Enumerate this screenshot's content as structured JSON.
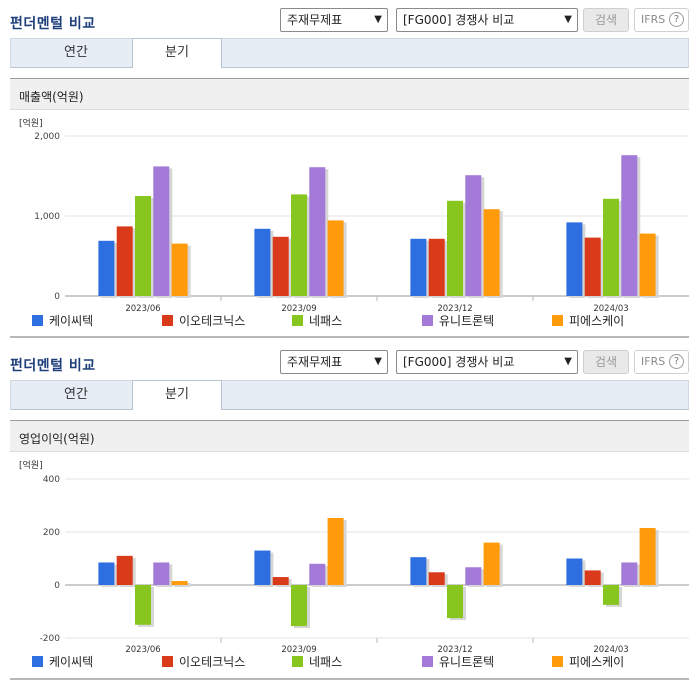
{
  "panels": [
    {
      "title": "펀더멘털 비교",
      "select1": "주재무제표",
      "select2": "[FG000] 경쟁사 비교",
      "search_btn": "검색",
      "ifrs": "IFRS",
      "help": "?",
      "tabs": [
        "연간",
        "분기"
      ],
      "active_tab": 1,
      "section_title": "매출액(억원)"
    },
    {
      "title": "펀더멘털 비교",
      "select1": "주재무제표",
      "select2": "[FG000] 경쟁사 비교",
      "search_btn": "검색",
      "ifrs": "IFRS",
      "help": "?",
      "tabs": [
        "연간",
        "분기"
      ],
      "active_tab": 1,
      "section_title": "영업이익(억원)"
    }
  ],
  "chart_data": [
    {
      "type": "bar",
      "unit": "[억원]",
      "categories": [
        "2023/06",
        "2023/09",
        "2023/12",
        "2024/03"
      ],
      "ylim": [
        0,
        2000
      ],
      "yticks": [
        0,
        1000,
        2000
      ],
      "ytick_labels": [
        "0",
        "1,000",
        "2,000"
      ],
      "grid": true,
      "legend_position": "bottom",
      "series": [
        {
          "name": "케이씨텍",
          "color": "#2d6fe0",
          "values": [
            690,
            840,
            715,
            920
          ]
        },
        {
          "name": "이오테크닉스",
          "color": "#d93a1a",
          "values": [
            870,
            740,
            715,
            730
          ]
        },
        {
          "name": "네패스",
          "color": "#86c61e",
          "values": [
            1250,
            1270,
            1190,
            1215
          ]
        },
        {
          "name": "유니트론텍",
          "color": "#a47ad9",
          "values": [
            1620,
            1610,
            1510,
            1760
          ]
        },
        {
          "name": "피에스케이",
          "color": "#ff9a0a",
          "values": [
            655,
            945,
            1085,
            780
          ]
        }
      ]
    },
    {
      "type": "bar",
      "unit": "[억원]",
      "categories": [
        "2023/06",
        "2023/09",
        "2023/12",
        "2024/03"
      ],
      "ylim": [
        -200,
        400
      ],
      "yticks": [
        -200,
        0,
        200,
        400
      ],
      "ytick_labels": [
        "-200",
        "0",
        "200",
        "400"
      ],
      "grid": true,
      "legend_position": "bottom",
      "series": [
        {
          "name": "케이씨텍",
          "color": "#2d6fe0",
          "values": [
            85,
            130,
            105,
            100
          ]
        },
        {
          "name": "이오테크닉스",
          "color": "#d93a1a",
          "values": [
            110,
            30,
            48,
            55
          ]
        },
        {
          "name": "네패스",
          "color": "#86c61e",
          "values": [
            -150,
            -155,
            -125,
            -75
          ]
        },
        {
          "name": "유니트론텍",
          "color": "#a47ad9",
          "values": [
            85,
            80,
            67,
            85
          ]
        },
        {
          "name": "피에스케이",
          "color": "#ff9a0a",
          "values": [
            15,
            253,
            160,
            215
          ]
        }
      ]
    }
  ]
}
